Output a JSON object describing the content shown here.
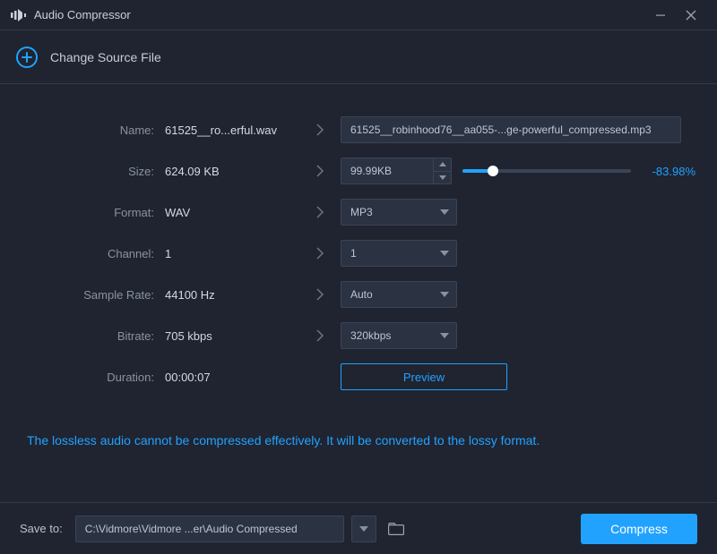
{
  "app": {
    "title": "Audio Compressor"
  },
  "source": {
    "change_label": "Change Source File"
  },
  "labels": {
    "name": "Name:",
    "size": "Size:",
    "format": "Format:",
    "channel": "Channel:",
    "sample_rate": "Sample Rate:",
    "bitrate": "Bitrate:",
    "duration": "Duration:"
  },
  "src": {
    "name": "61525__ro...erful.wav",
    "size": "624.09 KB",
    "format": "WAV",
    "channel": "1",
    "sample_rate": "44100 Hz",
    "bitrate": "705 kbps",
    "duration": "00:00:07"
  },
  "target": {
    "name": "61525__robinhood76__aa055-...ge-powerful_compressed.mp3",
    "size": "99.99KB",
    "size_pct_label": "-83.98%",
    "size_slider_fill_pct": 18,
    "format": "MP3",
    "channel": "1",
    "sample_rate": "Auto",
    "bitrate": "320kbps"
  },
  "preview_label": "Preview",
  "info_message": "The lossless audio cannot be compressed effectively. It will be converted to the lossy format.",
  "footer": {
    "save_to_label": "Save to:",
    "path": "C:\\Vidmore\\Vidmore ...er\\Audio Compressed",
    "compress_label": "Compress"
  },
  "colors": {
    "bg": "#1f2430",
    "panel": "#2b3242",
    "border": "#3b4358",
    "text": "#bec6d2",
    "muted": "#8a92a0",
    "accent": "#22a2ff"
  }
}
